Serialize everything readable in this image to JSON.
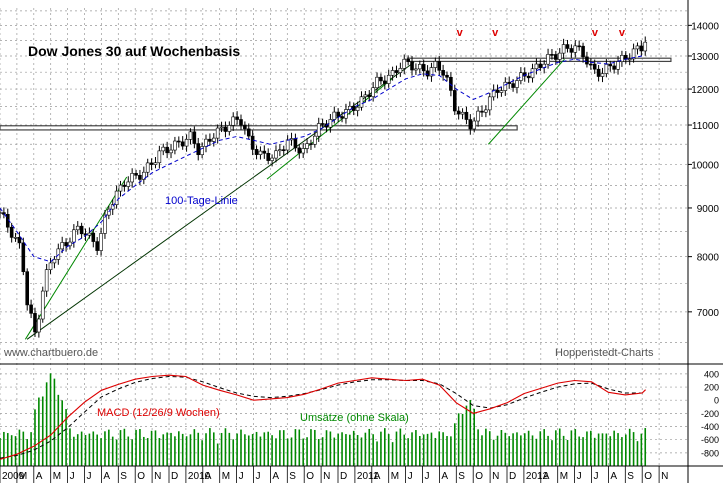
{
  "chart_data": {
    "type": "candlestick",
    "title": "Dow Jones 30 auf Wochenbasis",
    "watermark_left": "www.chartbuero.de",
    "watermark_right": "Hoppenstedt-Charts",
    "price_axis": {
      "scale": "log",
      "ylim": [
        6200,
        14600
      ],
      "ticks": [
        7000,
        8000,
        9000,
        10000,
        11000,
        12000,
        13000,
        14000
      ]
    },
    "macd_axis": {
      "ylim": [
        -1000,
        520
      ],
      "ticks": [
        400,
        200,
        0,
        -200,
        -400,
        -600,
        -800
      ]
    },
    "months": [
      "2009",
      "M",
      "A",
      "M",
      "J",
      "J",
      "A",
      "S",
      "O",
      "N",
      "D",
      "2010",
      "A",
      "M",
      "J",
      "J",
      "A",
      "S",
      "O",
      "N",
      "D",
      "2011",
      "A",
      "M",
      "J",
      "J",
      "A",
      "S",
      "O",
      "N",
      "D",
      "2012",
      "A",
      "M",
      "J",
      "J",
      "A",
      "S",
      "O",
      "N"
    ],
    "x_start": "2009-01",
    "weekly_close": [
      [
        0,
        8900
      ],
      [
        1.3,
        8100
      ],
      [
        1.5,
        7300
      ],
      [
        2.1,
        6600
      ],
      [
        2.6,
        7500
      ],
      [
        3.1,
        8000
      ],
      [
        4,
        8300
      ],
      [
        4.7,
        8600
      ],
      [
        5.2,
        8400
      ],
      [
        5.8,
        8200
      ],
      [
        6.4,
        9000
      ],
      [
        7.4,
        9600
      ],
      [
        8.5,
        9800
      ],
      [
        9.5,
        10300
      ],
      [
        10.5,
        10500
      ],
      [
        11.3,
        10700
      ],
      [
        11.8,
        10300
      ],
      [
        12.5,
        10700
      ],
      [
        13.5,
        11000
      ],
      [
        14.2,
        11200
      ],
      [
        14.8,
        10500
      ],
      [
        15.5,
        10200
      ],
      [
        16.3,
        10200
      ],
      [
        17,
        10600
      ],
      [
        18,
        10300
      ],
      [
        18.8,
        10900
      ],
      [
        19.7,
        11200
      ],
      [
        20.7,
        11400
      ],
      [
        21.5,
        11700
      ],
      [
        22.3,
        12200
      ],
      [
        23.2,
        12400
      ],
      [
        23.8,
        12800
      ],
      [
        24.4,
        12700
      ],
      [
        25.2,
        12500
      ],
      [
        25.8,
        12700
      ],
      [
        26.3,
        12500
      ],
      [
        26.9,
        11500
      ],
      [
        27.4,
        11200
      ],
      [
        27.9,
        11000
      ],
      [
        28.7,
        11500
      ],
      [
        29.4,
        12000
      ],
      [
        30.1,
        12100
      ],
      [
        30.7,
        12300
      ],
      [
        31.7,
        12600
      ],
      [
        32.3,
        12900
      ],
      [
        32.8,
        13000
      ],
      [
        33.3,
        13200
      ],
      [
        34,
        13300
      ],
      [
        34.6,
        13000
      ],
      [
        35.1,
        12500
      ],
      [
        35.6,
        12500
      ],
      [
        36.2,
        12700
      ],
      [
        36.9,
        12900
      ],
      [
        37.4,
        13100
      ],
      [
        38,
        13300
      ],
      [
        38.2,
        13550
      ]
    ],
    "ma100": [
      [
        0,
        9000
      ],
      [
        1,
        8500
      ],
      [
        2,
        8000
      ],
      [
        3,
        7900
      ],
      [
        4,
        8200
      ],
      [
        5,
        8400
      ],
      [
        6,
        8700
      ],
      [
        7,
        9200
      ],
      [
        8,
        9500
      ],
      [
        9,
        9800
      ],
      [
        10,
        10000
      ],
      [
        11,
        10200
      ],
      [
        12,
        10400
      ],
      [
        13,
        10600
      ],
      [
        14,
        10700
      ],
      [
        15,
        10600
      ],
      [
        16,
        10500
      ],
      [
        17,
        10600
      ],
      [
        18,
        10700
      ],
      [
        19,
        10900
      ],
      [
        20,
        11200
      ],
      [
        21,
        11500
      ],
      [
        22,
        11700
      ],
      [
        23,
        12000
      ],
      [
        24,
        12300
      ],
      [
        25,
        12450
      ],
      [
        26,
        12400
      ],
      [
        27,
        12000
      ],
      [
        28,
        11700
      ],
      [
        29,
        11900
      ],
      [
        30,
        12150
      ],
      [
        31,
        12400
      ],
      [
        32,
        12600
      ],
      [
        33,
        12800
      ],
      [
        34,
        12900
      ],
      [
        35,
        12800
      ],
      [
        36,
        12750
      ],
      [
        37,
        12900
      ],
      [
        38,
        13000
      ]
    ],
    "resistance_zones": [
      [
        10870,
        10980
      ],
      [
        12830,
        12930
      ]
    ],
    "trend_lines": [
      {
        "color": "#008800",
        "from": [
          1.5,
          6550
        ],
        "to": [
          7.5,
          9700
        ]
      },
      {
        "color": "#003300",
        "from": [
          1.6,
          6550
        ],
        "to": [
          24.5,
          12800
        ]
      },
      {
        "color": "#008800",
        "from": [
          15.8,
          9650
        ],
        "to": [
          23.2,
          12300
        ]
      },
      {
        "color": "#008800",
        "from": [
          28.9,
          10500
        ],
        "to": [
          33.4,
          12900
        ]
      }
    ],
    "macd": [
      [
        0,
        -900
      ],
      [
        1,
        -820
      ],
      [
        2,
        -700
      ],
      [
        3,
        -530
      ],
      [
        4,
        -260
      ],
      [
        5,
        -30
      ],
      [
        6,
        150
      ],
      [
        7,
        240
      ],
      [
        8,
        320
      ],
      [
        9,
        360
      ],
      [
        10,
        380
      ],
      [
        11,
        360
      ],
      [
        12,
        230
      ],
      [
        13,
        150
      ],
      [
        14,
        80
      ],
      [
        15,
        0
      ],
      [
        16,
        20
      ],
      [
        17,
        40
      ],
      [
        18,
        90
      ],
      [
        19,
        170
      ],
      [
        20,
        260
      ],
      [
        21,
        300
      ],
      [
        22,
        340
      ],
      [
        23,
        320
      ],
      [
        24,
        300
      ],
      [
        25,
        320
      ],
      [
        26,
        230
      ],
      [
        27,
        -40
      ],
      [
        28,
        -200
      ],
      [
        29,
        -130
      ],
      [
        30,
        -40
      ],
      [
        31,
        100
      ],
      [
        32,
        180
      ],
      [
        33,
        260
      ],
      [
        34,
        300
      ],
      [
        35,
        280
      ],
      [
        36,
        120
      ],
      [
        37,
        80
      ],
      [
        38,
        110
      ],
      [
        38.2,
        160
      ]
    ],
    "signal": [
      [
        0,
        -880
      ],
      [
        1,
        -840
      ],
      [
        2,
        -760
      ],
      [
        3,
        -620
      ],
      [
        4,
        -420
      ],
      [
        5,
        -180
      ],
      [
        6,
        50
      ],
      [
        7,
        170
      ],
      [
        8,
        270
      ],
      [
        9,
        330
      ],
      [
        10,
        360
      ],
      [
        11,
        350
      ],
      [
        12,
        280
      ],
      [
        13,
        190
      ],
      [
        14,
        110
      ],
      [
        15,
        60
      ],
      [
        16,
        40
      ],
      [
        17,
        60
      ],
      [
        18,
        100
      ],
      [
        19,
        160
      ],
      [
        20,
        230
      ],
      [
        21,
        280
      ],
      [
        22,
        310
      ],
      [
        23,
        310
      ],
      [
        24,
        300
      ],
      [
        25,
        300
      ],
      [
        26,
        250
      ],
      [
        27,
        100
      ],
      [
        28,
        -80
      ],
      [
        29,
        -120
      ],
      [
        30,
        -70
      ],
      [
        31,
        30
      ],
      [
        32,
        120
      ],
      [
        33,
        200
      ],
      [
        34,
        250
      ],
      [
        35,
        260
      ],
      [
        36,
        170
      ],
      [
        37,
        110
      ],
      [
        38,
        110
      ],
      [
        38.2,
        130
      ]
    ],
    "markers": [
      {
        "label": "v",
        "x": 27.2
      },
      {
        "label": "v",
        "x": 29.3
      },
      {
        "label": "v",
        "x": 35.2
      },
      {
        "label": "v",
        "x": 36.8
      }
    ],
    "annotations": {
      "ma_label": "100-Tage-Linie",
      "macd_label": "MACD (12/26/9 Wochen)",
      "volume_label": "Umsätze (ohne Skala)"
    },
    "colors": {
      "price": "#000000",
      "ma100": "#0000cc",
      "macd": "#dd0000",
      "signal": "#000000",
      "volume": "#008800",
      "marker": "#dd0000",
      "grid": "#999999"
    }
  }
}
